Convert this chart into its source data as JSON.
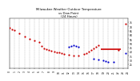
{
  "title": "Milwaukee Weather Outdoor Temperature\nvs Dew Point\n(24 Hours)",
  "title_fontsize": 2.8,
  "background_color": "#ffffff",
  "xlim": [
    0,
    24
  ],
  "ylim": [
    20,
    80
  ],
  "xticks": [
    0,
    1,
    2,
    3,
    4,
    5,
    6,
    7,
    8,
    9,
    10,
    11,
    12,
    13,
    14,
    15,
    16,
    17,
    18,
    19,
    20,
    21,
    22,
    23,
    24
  ],
  "ytick_vals": [
    25,
    30,
    35,
    40,
    45,
    50,
    55,
    60,
    65,
    70,
    75
  ],
  "tick_fontsize": 2.2,
  "grid_color": "#999999",
  "temp_color": "#cc0000",
  "dew_color": "#0000cc",
  "temp_x": [
    0,
    0.5,
    1,
    2,
    3,
    4,
    5,
    6,
    6.5,
    7,
    7.5,
    8,
    8.5,
    9,
    9.5,
    10,
    10.5,
    11,
    12,
    13,
    14,
    15,
    15.5,
    16,
    16.5,
    17,
    17.5,
    18,
    22,
    23.5
  ],
  "temp_y": [
    68,
    67,
    66,
    62,
    58,
    55,
    53,
    51,
    47,
    44,
    43,
    42,
    41,
    40,
    39,
    39,
    38,
    37,
    36,
    35,
    35,
    37,
    38,
    40,
    42,
    44,
    46,
    48,
    42,
    73
  ],
  "dew_x": [
    12,
    12.5,
    13,
    13.5,
    14,
    17,
    18,
    19,
    19.5,
    20,
    21,
    23.5
  ],
  "dew_y": [
    46,
    47,
    48,
    47,
    46,
    32,
    31,
    30,
    29,
    28,
    28,
    38
  ],
  "red_line_x": [
    18.5,
    22.5
  ],
  "red_line_y": [
    43,
    43
  ],
  "dot_size": 2.5,
  "line_width": 1.2
}
